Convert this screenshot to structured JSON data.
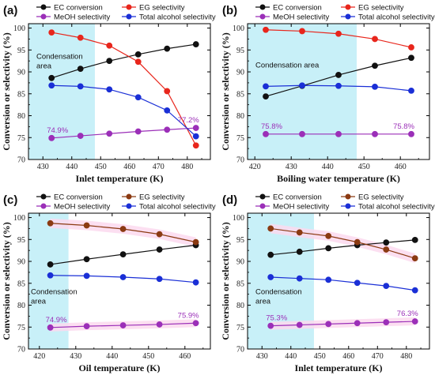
{
  "colors": {
    "ec": "#111111",
    "eg_red": "#e8261c",
    "eg_brown": "#8b3a12",
    "meoh": "#9b2fb8",
    "total": "#1a2fd6",
    "condensation": "#c8f0f8",
    "highlight": "#fbd9ef"
  },
  "chart_data": [
    {
      "type": "line",
      "panel": "(a)",
      "xlabel": "Inlet temperature (K)",
      "ylabel": "Conversion or selectivity (%)",
      "xlim": [
        425,
        488
      ],
      "ylim": [
        70,
        101
      ],
      "xticks": [
        430,
        440,
        450,
        460,
        470,
        480
      ],
      "yticks": [
        70,
        75,
        80,
        85,
        90,
        95,
        100
      ],
      "condensation_range": [
        425,
        448
      ],
      "condensation_label": [
        "Condensation",
        "area"
      ],
      "eg_color": "eg_red",
      "x": [
        433,
        443,
        453,
        463,
        473,
        483
      ],
      "series": [
        {
          "name": "EC conversion",
          "key": "ec",
          "values": [
            88.6,
            90.7,
            92.5,
            94.0,
            95.3,
            96.3
          ]
        },
        {
          "name": "EG selectivity",
          "key": "eg",
          "values": [
            99.0,
            97.8,
            96.0,
            92.3,
            85.6,
            73.2
          ]
        },
        {
          "name": "MeOH selectivity",
          "key": "meoh",
          "values": [
            74.9,
            75.4,
            75.9,
            76.4,
            76.8,
            77.2
          ]
        },
        {
          "name": "Total alcohol selectivity",
          "key": "total",
          "values": [
            86.9,
            86.7,
            86.0,
            84.2,
            81.2,
            75.3
          ]
        }
      ],
      "annotations": [
        {
          "text": "74.9%",
          "x": 433,
          "y": 74.9
        },
        {
          "text": "77.2%",
          "x": 483,
          "y": 77.2
        }
      ],
      "highlight": false
    },
    {
      "type": "line",
      "panel": "(b)",
      "xlabel": "Boiling water temperature (K)",
      "ylabel": "Conversion or selectivity (%)",
      "xlim": [
        418,
        468
      ],
      "ylim": [
        70,
        101
      ],
      "xticks": [
        420,
        430,
        440,
        450,
        460
      ],
      "yticks": [
        70,
        75,
        80,
        85,
        90,
        95,
        100
      ],
      "condensation_range": [
        418,
        448
      ],
      "condensation_label": [
        "Condensation area"
      ],
      "eg_color": "eg_red",
      "x": [
        423,
        433,
        443,
        453,
        463
      ],
      "series": [
        {
          "name": "EC conversion",
          "key": "ec",
          "values": [
            84.4,
            86.8,
            89.3,
            91.4,
            93.2
          ]
        },
        {
          "name": "EG selectivity",
          "key": "eg",
          "values": [
            99.6,
            99.3,
            98.7,
            97.5,
            95.6
          ]
        },
        {
          "name": "MeOH selectivity",
          "key": "meoh",
          "values": [
            75.8,
            75.8,
            75.8,
            75.8,
            75.8
          ]
        },
        {
          "name": "Total alcohol selectivity",
          "key": "total",
          "values": [
            86.7,
            86.9,
            86.8,
            86.6,
            85.7
          ]
        }
      ],
      "annotations": [
        {
          "text": "75.8%",
          "x": 423,
          "y": 75.8
        },
        {
          "text": "75.8%",
          "x": 463,
          "y": 75.8
        }
      ],
      "highlight": false
    },
    {
      "type": "line",
      "panel": "(c)",
      "xlabel": "Oil temperature (K)",
      "ylabel": "Conversion or selectivity (%)",
      "xlim": [
        417,
        467
      ],
      "ylim": [
        70,
        101
      ],
      "xticks": [
        420,
        430,
        440,
        450,
        460
      ],
      "yticks": [
        70,
        75,
        80,
        85,
        90,
        95,
        100
      ],
      "condensation_range": [
        417,
        428
      ],
      "condensation_label": [
        "Condensation",
        "area"
      ],
      "eg_color": "eg_brown",
      "x": [
        423,
        433,
        443,
        453,
        463
      ],
      "series": [
        {
          "name": "EC conversion",
          "key": "ec",
          "values": [
            89.3,
            90.5,
            91.6,
            92.7,
            93.7
          ]
        },
        {
          "name": "EG selectivity",
          "key": "eg",
          "values": [
            98.7,
            98.2,
            97.4,
            96.2,
            94.4
          ]
        },
        {
          "name": "MeOH selectivity",
          "key": "meoh",
          "values": [
            74.9,
            75.2,
            75.4,
            75.6,
            75.9
          ]
        },
        {
          "name": "Total alcohol selectivity",
          "key": "total",
          "values": [
            86.8,
            86.7,
            86.4,
            86.0,
            85.2
          ]
        }
      ],
      "annotations": [
        {
          "text": "74.9%",
          "x": 423,
          "y": 74.9
        },
        {
          "text": "75.9%",
          "x": 463,
          "y": 75.9
        }
      ],
      "highlight": true
    },
    {
      "type": "line",
      "panel": "(d)",
      "xlabel": "Inlet temperature (K)",
      "ylabel": "Conversion or selectivity (%)",
      "xlim": [
        425,
        488
      ],
      "ylim": [
        70,
        101
      ],
      "xticks": [
        430,
        440,
        450,
        460,
        470,
        480
      ],
      "yticks": [
        70,
        75,
        80,
        85,
        90,
        95,
        100
      ],
      "condensation_range": [
        425,
        448
      ],
      "condensation_label": [
        "Condensation",
        "area"
      ],
      "eg_color": "eg_brown",
      "x": [
        433,
        443,
        453,
        463,
        473,
        483
      ],
      "series": [
        {
          "name": "EC conversion",
          "key": "ec",
          "values": [
            91.5,
            92.2,
            93.0,
            93.7,
            94.3,
            94.9
          ]
        },
        {
          "name": "EG selectivity",
          "key": "eg",
          "values": [
            97.5,
            96.6,
            95.8,
            94.4,
            92.7,
            90.7
          ]
        },
        {
          "name": "MeOH selectivity",
          "key": "meoh",
          "values": [
            75.3,
            75.5,
            75.7,
            75.9,
            76.1,
            76.3
          ]
        },
        {
          "name": "Total alcohol selectivity",
          "key": "total",
          "values": [
            86.4,
            86.1,
            85.8,
            85.1,
            84.4,
            83.4
          ]
        }
      ],
      "annotations": [
        {
          "text": "75.3%",
          "x": 433,
          "y": 75.3
        },
        {
          "text": "76.3%",
          "x": 483,
          "y": 76.3
        }
      ],
      "highlight": true
    }
  ]
}
